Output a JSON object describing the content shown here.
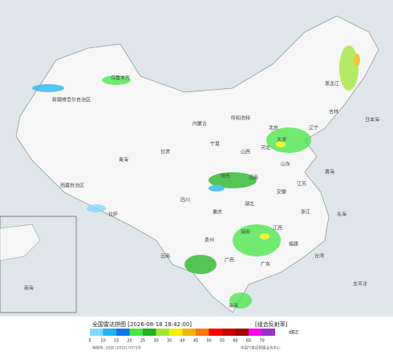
{
  "header": {
    "title": "全国雷达拼图 [2026-08-18 18:42:00]",
    "product": "[组合反射率]"
  },
  "legend": {
    "unit": "dBZ",
    "values": [
      5,
      10,
      15,
      20,
      25,
      30,
      35,
      40,
      45,
      50,
      55,
      60,
      65,
      70
    ],
    "colors": [
      "#7fd8ff",
      "#1eb4f0",
      "#0a78e6",
      "#46e646",
      "#1eb41e",
      "#a0e632",
      "#f0f000",
      "#f0b400",
      "#ff7800",
      "#ff0000",
      "#c80000",
      "#a00000",
      "#ff00f0",
      "#9632c8"
    ]
  },
  "footer": {
    "review": "审图号: GS京 (2022) 0372号",
    "agency": "中国气象局预报业务中心"
  },
  "labels": [
    "乌鲁木齐",
    "新疆维吾尔自治区",
    "西藏自治区",
    "拉萨",
    "青海",
    "甘肃",
    "内蒙古",
    "呼和浩特",
    "北京",
    "天津",
    "河北",
    "山西",
    "宁夏",
    "陕西",
    "河南",
    "山东",
    "江苏",
    "安徽",
    "湖北",
    "四川",
    "重庆",
    "湖南",
    "江西",
    "浙江",
    "贵州",
    "云南",
    "广西",
    "广东",
    "福建",
    "台湾",
    "海南",
    "黑龙江",
    "吉林",
    "辽宁",
    "日本海",
    "黄海",
    "东海",
    "太平洋",
    "南海"
  ]
}
